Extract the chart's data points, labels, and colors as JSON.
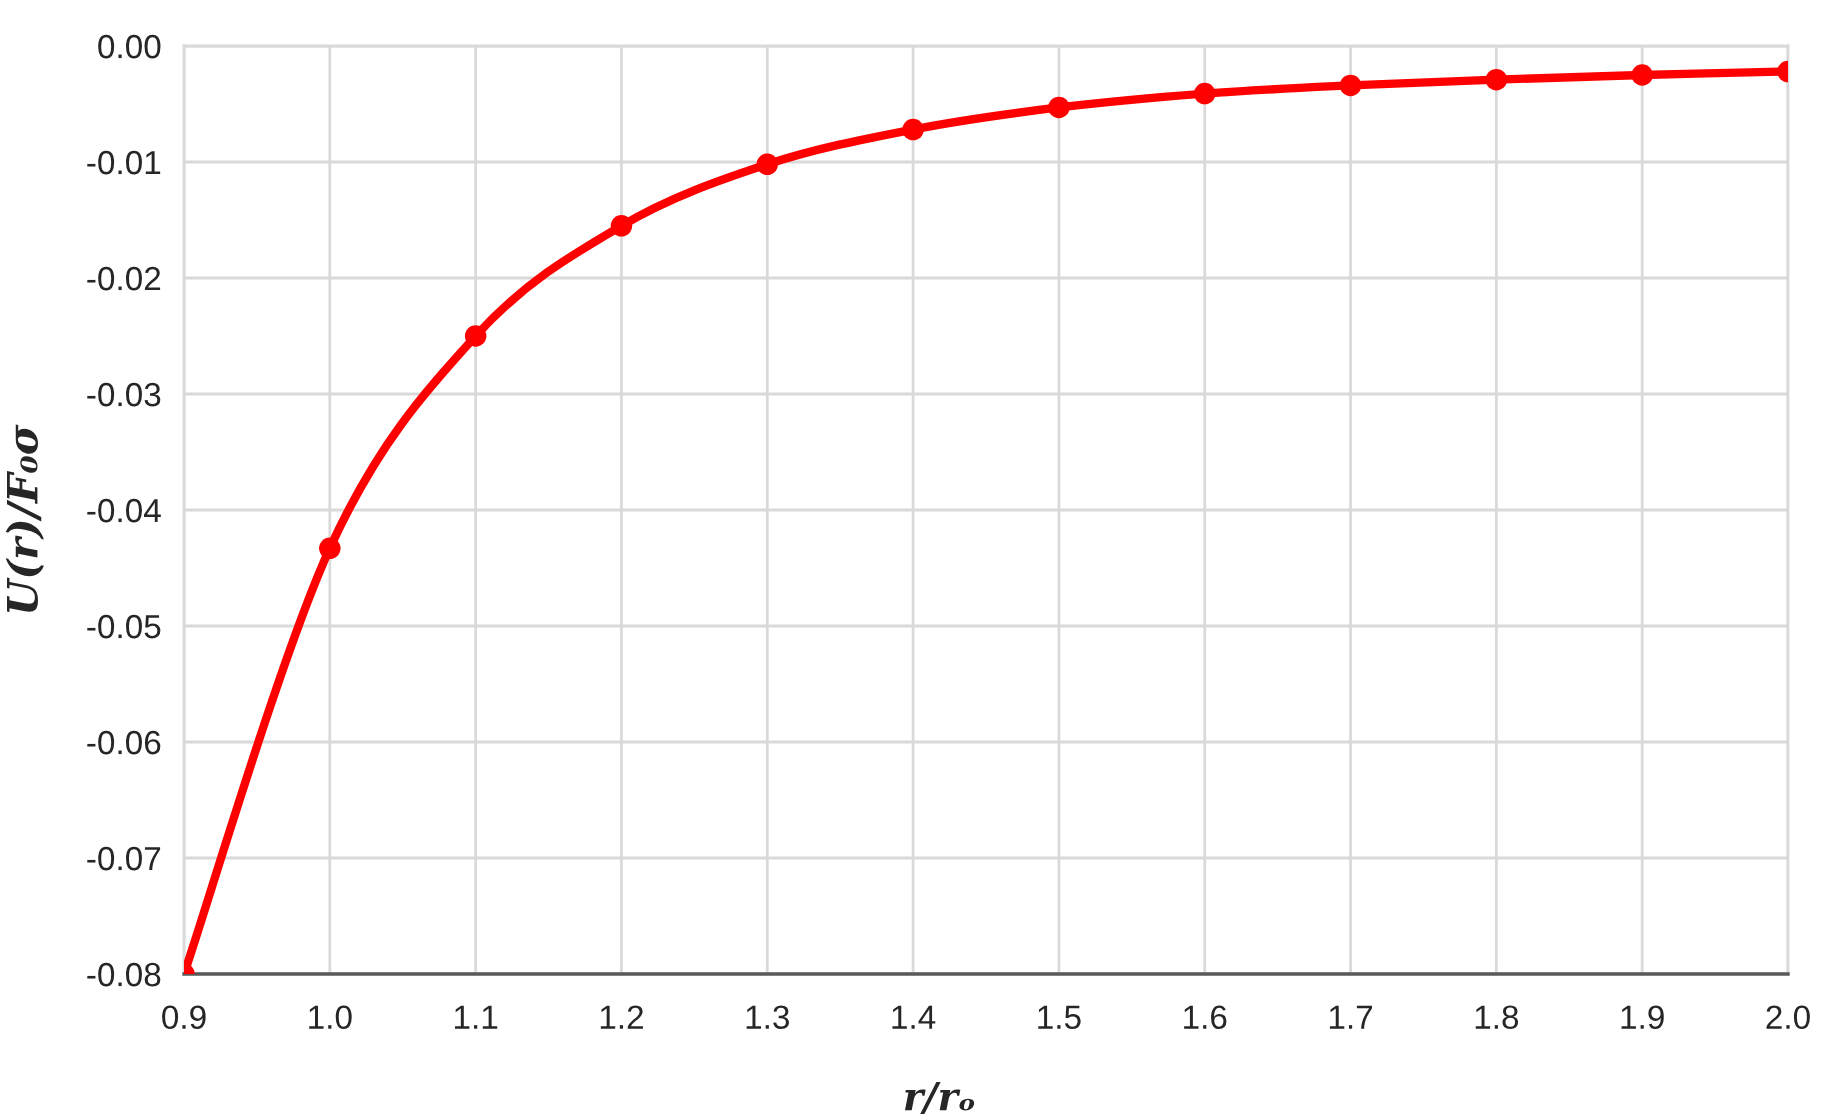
{
  "chart_data": {
    "type": "line",
    "xlabel": "r/rₒ",
    "ylabel": "U(r)/F₀σ",
    "x": [
      0.9,
      1.0,
      1.1,
      1.2,
      1.3,
      1.4,
      1.5,
      1.6,
      1.7,
      1.8,
      1.9,
      2.0
    ],
    "series": [
      {
        "color": "#ff0000",
        "values": [
          -0.08,
          -0.0433,
          -0.025,
          -0.0155,
          -0.0102,
          -0.0072,
          -0.0053,
          -0.0041,
          -0.0034,
          -0.0029,
          -0.0025,
          -0.0022
        ]
      }
    ],
    "xlim": [
      0.9,
      2.0
    ],
    "xticks": [
      0.9,
      {
        "value": 1.0,
        "label": "1.0"
      },
      1.1,
      1.2,
      1.3,
      1.4,
      1.5,
      1.6,
      1.7,
      1.8,
      1.9,
      {
        "value": 2.0,
        "label": "2.0"
      }
    ],
    "ylim": [
      -0.08,
      0
    ],
    "yticks": [
      -0.08,
      -0.07,
      -0.06,
      -0.05,
      -0.04,
      -0.03,
      -0.02,
      -0.01,
      {
        "value": 0,
        "label": "0.00"
      }
    ],
    "grid": true,
    "marker": "circle",
    "line_style": "solid"
  }
}
